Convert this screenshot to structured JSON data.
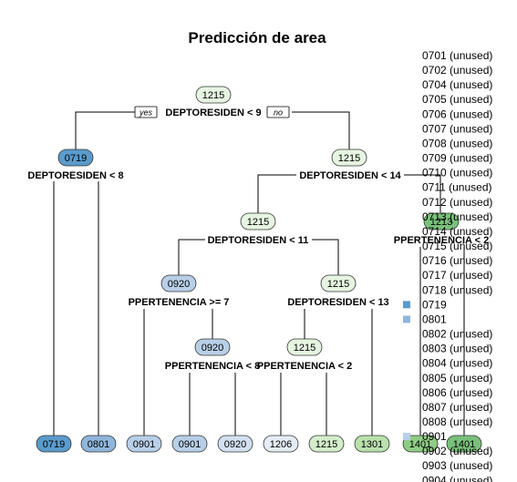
{
  "title": "Predicción de area",
  "yes_label": "yes",
  "no_label": "no",
  "nodes": [
    {
      "id": "n1",
      "label": "1215",
      "color": "#e6f5e1"
    },
    {
      "id": "n2",
      "label": "0719",
      "color": "#5b9bcc"
    },
    {
      "id": "n3",
      "label": "1215",
      "color": "#e6f5e1"
    },
    {
      "id": "n6",
      "label": "1215",
      "color": "#e6f5e1"
    },
    {
      "id": "n12",
      "label": "0920",
      "color": "#b8cfe8"
    },
    {
      "id": "n13",
      "label": "1215",
      "color": "#e6f5e1"
    },
    {
      "id": "n25",
      "label": "0920",
      "color": "#b8cfe8"
    },
    {
      "id": "n26",
      "label": "1215",
      "color": "#e6f5e1"
    },
    {
      "id": "n7",
      "label": "1213",
      "color": "#7ac27a"
    }
  ],
  "splits": [
    {
      "id": "s1",
      "label": "DEPTORESIDEN < 9"
    },
    {
      "id": "s2",
      "label": "DEPTORESIDEN < 8"
    },
    {
      "id": "s3",
      "label": "DEPTORESIDEN < 14"
    },
    {
      "id": "s6",
      "label": "DEPTORESIDEN < 11"
    },
    {
      "id": "s12",
      "label": "PPERTENENCIA >= 7"
    },
    {
      "id": "s13",
      "label": "DEPTORESIDEN < 13"
    },
    {
      "id": "s25",
      "label": "PPERTENENCIA < 8"
    },
    {
      "id": "s26",
      "label": "PPERTENENCIA < 2"
    },
    {
      "id": "s7",
      "label": "PPERTENENCIA < 2"
    }
  ],
  "leaves": [
    {
      "label": "0719",
      "color": "#5b9bcc"
    },
    {
      "label": "0801",
      "color": "#8fb6db"
    },
    {
      "label": "0901",
      "color": "#b8cfe8"
    },
    {
      "label": "0901",
      "color": "#b8cfe8"
    },
    {
      "label": "0920",
      "color": "#d2e0f0"
    },
    {
      "label": "1206",
      "color": "#e4ecf6"
    },
    {
      "label": "1215",
      "color": "#d4eecb"
    },
    {
      "label": "1301",
      "color": "#b9e0ad"
    },
    {
      "label": "1401",
      "color": "#8fcc84"
    },
    {
      "label": "1401",
      "color": "#79c07a"
    }
  ],
  "legend": [
    {
      "label": "0701 (unused)",
      "color": ""
    },
    {
      "label": "0702 (unused)",
      "color": ""
    },
    {
      "label": "0704 (unused)",
      "color": ""
    },
    {
      "label": "0705 (unused)",
      "color": ""
    },
    {
      "label": "0706 (unused)",
      "color": ""
    },
    {
      "label": "0707 (unused)",
      "color": ""
    },
    {
      "label": "0708 (unused)",
      "color": ""
    },
    {
      "label": "0709 (unused)",
      "color": ""
    },
    {
      "label": "0710 (unused)",
      "color": ""
    },
    {
      "label": "0711 (unused)",
      "color": ""
    },
    {
      "label": "0712 (unused)",
      "color": ""
    },
    {
      "label": "0713 (unused)",
      "color": ""
    },
    {
      "label": "0714 (unused)",
      "color": ""
    },
    {
      "label": "0715 (unused)",
      "color": ""
    },
    {
      "label": "0716 (unused)",
      "color": ""
    },
    {
      "label": "0717 (unused)",
      "color": ""
    },
    {
      "label": "0718 (unused)",
      "color": ""
    },
    {
      "label": "0719",
      "color": "#5b9bcc"
    },
    {
      "label": "0801",
      "color": "#8fb6db"
    },
    {
      "label": "0802 (unused)",
      "color": ""
    },
    {
      "label": "0803 (unused)",
      "color": ""
    },
    {
      "label": "0804 (unused)",
      "color": ""
    },
    {
      "label": "0805 (unused)",
      "color": ""
    },
    {
      "label": "0806 (unused)",
      "color": ""
    },
    {
      "label": "0807 (unused)",
      "color": ""
    },
    {
      "label": "0808 (unused)",
      "color": ""
    },
    {
      "label": "0901",
      "color": "#b8cfe8"
    },
    {
      "label": "0902 (unused)",
      "color": ""
    },
    {
      "label": "0903 (unused)",
      "color": ""
    },
    {
      "label": "0904 (unused)",
      "color": ""
    }
  ]
}
